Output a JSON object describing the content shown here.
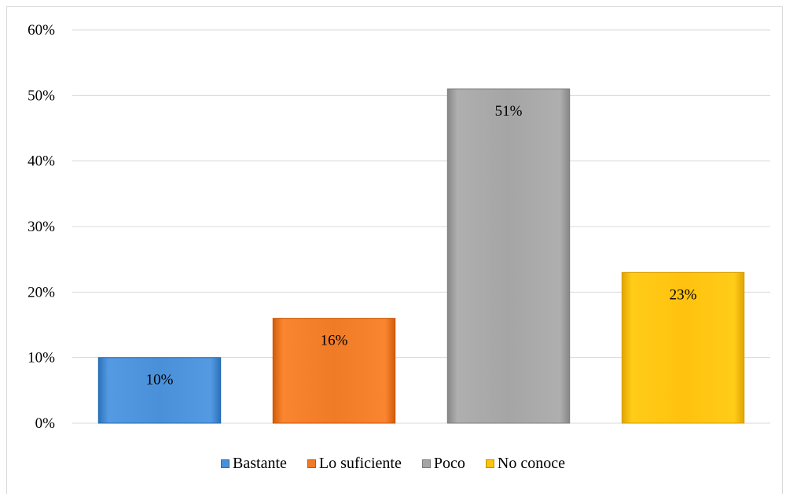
{
  "chart_data": {
    "type": "bar",
    "categories": [
      "Bastante",
      "Lo suficiente",
      "Poco",
      "No conoce"
    ],
    "values": [
      10,
      16,
      51,
      23
    ],
    "data_labels": [
      "10%",
      "16%",
      "51%",
      "23%"
    ],
    "colors": [
      "#4a90d9",
      "#f07b27",
      "#a5a5a5",
      "#ffc20e"
    ],
    "ylim": [
      0,
      60
    ],
    "yticks": [
      0,
      10,
      20,
      30,
      40,
      50,
      60
    ],
    "ytick_labels": [
      "0%",
      "10%",
      "20%",
      "30%",
      "40%",
      "50%",
      "60%"
    ],
    "grid": true,
    "legend_position": "bottom",
    "title": "",
    "xlabel": "",
    "ylabel": ""
  }
}
